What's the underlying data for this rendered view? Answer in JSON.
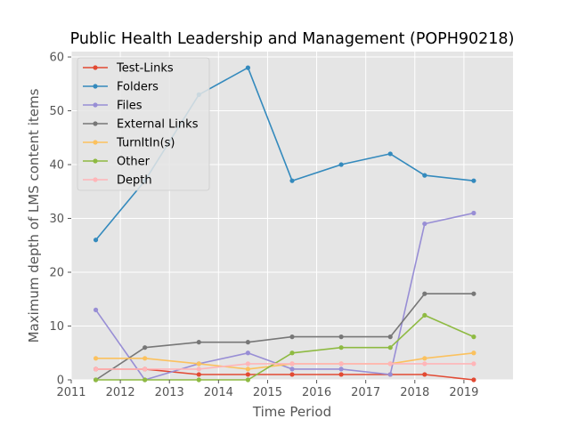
{
  "chart_data": {
    "type": "line",
    "title": "Public Health Leadership and Management (POPH90218)",
    "xlabel": "Time Period",
    "ylabel": "Maximum depth of LMS content items",
    "xlim": [
      2011,
      2020
    ],
    "ylim": [
      0,
      61
    ],
    "xticks": [
      2011,
      2012,
      2013,
      2014,
      2015,
      2016,
      2017,
      2018,
      2019
    ],
    "yticks": [
      0,
      10,
      20,
      30,
      40,
      50,
      60
    ],
    "grid": true,
    "legend_position": "top-left",
    "x": [
      2011.5,
      2012.5,
      2013.6,
      2014.6,
      2015.5,
      2016.5,
      2017.5,
      2018.2,
      2019.2
    ],
    "series": [
      {
        "name": "Test-Links",
        "color": "#E24A33",
        "values": [
          2,
          2,
          1,
          1,
          1,
          1,
          1,
          1,
          0
        ]
      },
      {
        "name": "Folders",
        "color": "#348ABD",
        "values": [
          26,
          37,
          53,
          58,
          37,
          40,
          42,
          38,
          37
        ]
      },
      {
        "name": "Files",
        "color": "#988ED5",
        "values": [
          13,
          0,
          3,
          5,
          2,
          2,
          1,
          29,
          31
        ]
      },
      {
        "name": "External Links",
        "color": "#777777",
        "values": [
          0,
          6,
          7,
          7,
          8,
          8,
          8,
          16,
          16
        ]
      },
      {
        "name": "TurnItIn(s)",
        "color": "#FBC15E",
        "values": [
          4,
          4,
          3,
          2,
          3,
          3,
          3,
          4,
          5
        ]
      },
      {
        "name": "Other",
        "color": "#8EBA42",
        "values": [
          0,
          0,
          0,
          0,
          5,
          6,
          6,
          12,
          8
        ]
      },
      {
        "name": "Depth",
        "color": "#FFB5B8",
        "values": [
          2,
          2,
          2,
          3,
          3,
          3,
          3,
          3,
          3
        ]
      }
    ]
  }
}
